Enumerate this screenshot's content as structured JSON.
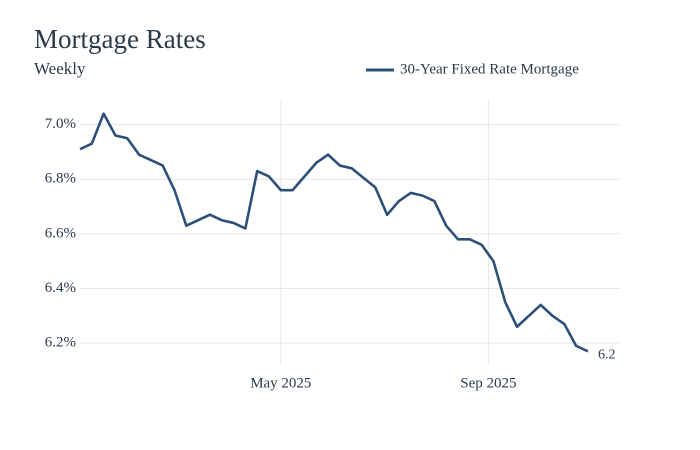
{
  "chart_data": {
    "type": "line",
    "title": "Mortgage Rates",
    "subtitle": "Weekly",
    "x": [
      "2025-01-02",
      "2025-01-09",
      "2025-01-16",
      "2025-01-23",
      "2025-01-30",
      "2025-02-06",
      "2025-02-13",
      "2025-02-20",
      "2025-02-27",
      "2025-03-06",
      "2025-03-13",
      "2025-03-20",
      "2025-03-27",
      "2025-04-03",
      "2025-04-10",
      "2025-04-17",
      "2025-04-24",
      "2025-05-01",
      "2025-05-08",
      "2025-05-15",
      "2025-05-22",
      "2025-05-29",
      "2025-06-05",
      "2025-06-12",
      "2025-06-18",
      "2025-06-26",
      "2025-07-03",
      "2025-07-10",
      "2025-07-17",
      "2025-07-24",
      "2025-07-31",
      "2025-08-07",
      "2025-08-14",
      "2025-08-21",
      "2025-08-28",
      "2025-09-04",
      "2025-09-11",
      "2025-09-18",
      "2025-09-25",
      "2025-10-02",
      "2025-10-09",
      "2025-10-16",
      "2025-10-23",
      "2025-10-30"
    ],
    "series": [
      {
        "name": "30-Year Fixed Rate Mortgage",
        "color": "#2d5078",
        "values": [
          6.91,
          6.93,
          7.04,
          6.96,
          6.95,
          6.89,
          6.87,
          6.85,
          6.76,
          6.63,
          6.65,
          6.67,
          6.65,
          6.64,
          6.62,
          6.83,
          6.81,
          6.76,
          6.76,
          6.81,
          6.86,
          6.89,
          6.85,
          6.84,
          6.81,
          6.77,
          6.67,
          6.72,
          6.75,
          6.74,
          6.72,
          6.63,
          6.58,
          6.58,
          6.56,
          6.5,
          6.35,
          6.26,
          6.3,
          6.34,
          6.3,
          6.27,
          6.19,
          6.17
        ],
        "end_label": "6.2"
      }
    ],
    "xlim": [
      "2025-01-02",
      "2025-11-18"
    ],
    "xticks": [
      {
        "value": "2025-05-01",
        "label": "May 2025"
      },
      {
        "value": "2025-09-01",
        "label": "Sep 2025"
      }
    ],
    "ylim": [
      6.12,
      7.09
    ],
    "yticks": [
      {
        "value": 6.2,
        "label": "6.2%"
      },
      {
        "value": 6.4,
        "label": "6.4%"
      },
      {
        "value": 6.6,
        "label": "6.6%"
      },
      {
        "value": 6.8,
        "label": "6.8%"
      },
      {
        "value": 7.0,
        "label": "7.0%"
      }
    ],
    "grid": true,
    "legend": "top-right"
  }
}
